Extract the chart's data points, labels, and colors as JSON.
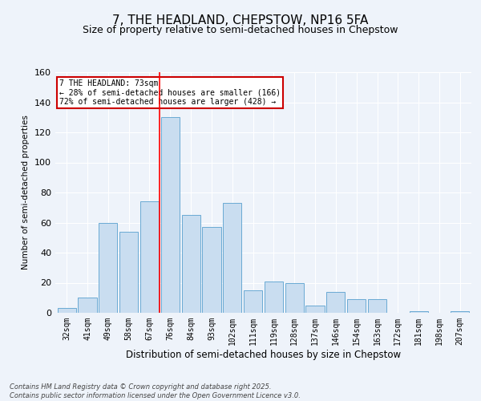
{
  "title": "7, THE HEADLAND, CHEPSTOW, NP16 5FA",
  "subtitle": "Size of property relative to semi-detached houses in Chepstow",
  "xlabel": "Distribution of semi-detached houses by size in Chepstow",
  "ylabel": "Number of semi-detached properties",
  "categories": [
    "32sqm",
    "41sqm",
    "49sqm",
    "58sqm",
    "67sqm",
    "76sqm",
    "84sqm",
    "93sqm",
    "102sqm",
    "111sqm",
    "119sqm",
    "128sqm",
    "137sqm",
    "146sqm",
    "154sqm",
    "163sqm",
    "172sqm",
    "181sqm",
    "198sqm",
    "207sqm"
  ],
  "values": [
    3,
    10,
    60,
    54,
    74,
    130,
    65,
    57,
    73,
    15,
    21,
    20,
    5,
    14,
    9,
    9,
    0,
    1,
    0,
    1
  ],
  "bar_color": "#c9ddf0",
  "bar_edge_color": "#6aaad4",
  "red_line_index": 4.5,
  "annotation_label": "7 THE HEADLAND: 73sqm",
  "annotation_line1": "← 28% of semi-detached houses are smaller (166)",
  "annotation_line2": "72% of semi-detached houses are larger (428) →",
  "ylim": [
    0,
    160
  ],
  "yticks": [
    0,
    20,
    40,
    60,
    80,
    100,
    120,
    140,
    160
  ],
  "footnote": "Contains HM Land Registry data © Crown copyright and database right 2025.\nContains public sector information licensed under the Open Government Licence v3.0.",
  "background_color": "#eef3fa",
  "plot_background": "#eef3fa",
  "title_fontsize": 11,
  "subtitle_fontsize": 9,
  "annotation_box_edgecolor": "#cc0000",
  "grid_color": "#ffffff"
}
